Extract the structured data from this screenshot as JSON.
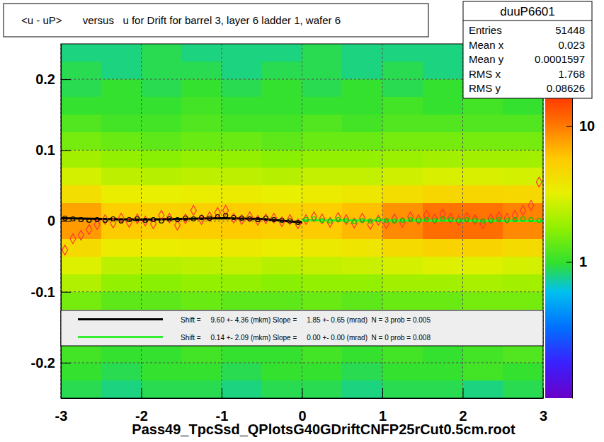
{
  "chart_data": {
    "type": "heatmap",
    "title": "<u - uP>       versus   u for Drift for barrel 3, layer 6 ladder 1, wafer 6",
    "x_label": "Pass49_TpcSsd_QPlotsG40GDriftCNFP25rCut0.5cm.root",
    "xlim": [
      -3,
      3
    ],
    "xticks": [
      -3,
      -2,
      -1,
      0,
      1,
      2,
      3
    ],
    "ylim": [
      -0.25,
      0.25
    ],
    "yticks": [
      -0.2,
      -0.1,
      0,
      0.1,
      0.2
    ],
    "grid": true,
    "legend": "bottom",
    "x_bins": [
      -3,
      -2.5,
      -2,
      -1.5,
      -1,
      -0.5,
      0,
      0.5,
      1,
      1.5,
      2,
      2.5,
      3
    ],
    "y_bins": [
      -0.25,
      -0.225,
      -0.2,
      -0.175,
      -0.15,
      -0.125,
      -0.1,
      -0.075,
      -0.05,
      -0.025,
      0,
      0.025,
      0.05,
      0.075,
      0.1,
      0.125,
      0.15,
      0.175,
      0.2,
      0.225,
      0.25
    ],
    "cells": [
      [
        0.9,
        0.8,
        0.9,
        0.9,
        0.8,
        0.9,
        0.9,
        0.8,
        0.9,
        0.9,
        0.8,
        0.9
      ],
      [
        1.0,
        0.9,
        1.0,
        1.0,
        0.9,
        1.0,
        1.0,
        0.9,
        1.0,
        1.0,
        1.1,
        1.0
      ],
      [
        1.1,
        1.0,
        1.0,
        1.1,
        1.0,
        1.0,
        1.1,
        1.0,
        1.1,
        1.0,
        1.1,
        1.2
      ],
      [
        null,
        null,
        null,
        null,
        null,
        null,
        null,
        null,
        null,
        null,
        null,
        null
      ],
      [
        null,
        null,
        null,
        null,
        null,
        null,
        null,
        null,
        null,
        null,
        null,
        null
      ],
      [
        1.5,
        1.3,
        1.3,
        1.4,
        1.3,
        1.3,
        1.4,
        1.3,
        1.4,
        1.4,
        1.5,
        1.5
      ],
      [
        2.2,
        1.8,
        1.7,
        1.8,
        1.8,
        1.7,
        1.8,
        1.8,
        2.0,
        2.0,
        2.1,
        2.0
      ],
      [
        3.0,
        2.4,
        2.3,
        2.4,
        2.5,
        2.3,
        2.5,
        2.6,
        2.8,
        3.0,
        3.0,
        2.8
      ],
      [
        4.5,
        3.5,
        3.4,
        3.5,
        3.6,
        3.4,
        3.6,
        3.8,
        4.5,
        5.0,
        5.0,
        4.5
      ],
      [
        8.0,
        5.5,
        5.2,
        5.4,
        5.6,
        5.2,
        5.5,
        6.5,
        9.0,
        11.0,
        11.0,
        9.0
      ],
      [
        7.5,
        5.3,
        5.0,
        5.2,
        5.4,
        5.0,
        5.3,
        6.2,
        8.5,
        10.5,
        10.5,
        9.5
      ],
      [
        4.2,
        3.4,
        3.3,
        3.4,
        3.5,
        3.3,
        3.5,
        3.7,
        4.3,
        4.8,
        4.8,
        4.6
      ],
      [
        2.8,
        2.4,
        2.3,
        2.4,
        2.4,
        2.3,
        2.5,
        2.5,
        2.7,
        2.9,
        2.9,
        2.8
      ],
      [
        2.0,
        1.8,
        1.7,
        1.8,
        1.8,
        1.7,
        1.8,
        1.8,
        1.9,
        2.0,
        2.0,
        2.0
      ],
      [
        1.5,
        1.4,
        1.3,
        1.4,
        1.4,
        1.3,
        1.4,
        1.4,
        1.5,
        1.5,
        1.5,
        1.5
      ],
      [
        1.2,
        1.1,
        1.1,
        1.2,
        1.1,
        1.1,
        1.2,
        1.1,
        1.2,
        1.2,
        1.2,
        1.2
      ],
      [
        1.0,
        1.0,
        1.0,
        1.1,
        1.0,
        1.0,
        1.0,
        1.0,
        1.1,
        1.0,
        1.1,
        1.0
      ],
      [
        0.9,
        1.0,
        0.9,
        1.0,
        0.9,
        1.0,
        0.9,
        1.0,
        0.9,
        1.0,
        null,
        null
      ],
      [
        0.9,
        0.8,
        0.9,
        0.9,
        0.8,
        0.9,
        0.9,
        0.8,
        0.9,
        0.8,
        null,
        null
      ],
      [
        0.8,
        0.8,
        0.9,
        0.8,
        0.8,
        0.8,
        0.9,
        0.8,
        0.8,
        0.8,
        null,
        null
      ]
    ],
    "colorbar": {
      "range": [
        0.1,
        40
      ],
      "ticks": [
        1,
        10
      ],
      "log": true
    },
    "series": [
      {
        "name": "Shift =     9.60 +- 4.36 (mkm) Slope =     1.85 +- 0.65 (mrad)  N = 3 prob = 0.005",
        "type": "line",
        "color": "#000000",
        "line_style": "solid",
        "x": [
          -3,
          -2,
          -1,
          -0.5,
          0
        ],
        "values": [
          0.004,
          0.002,
          0.004,
          0.003,
          -0.002
        ]
      },
      {
        "name": "Shift =     0.14 +- 2.09 (mkm) Slope =     0.00 +- 0.00 (mrad)  N = 0 prob = 0.008",
        "type": "line",
        "color": "#33ee33",
        "line_style": "solid",
        "x": [
          0,
          3
        ],
        "values": [
          0.001,
          0
        ]
      },
      {
        "type": "scatter",
        "color": "#ff3333",
        "marker": "diamond",
        "x": [
          -2.95,
          -2.85,
          -2.75,
          -2.65,
          -2.55,
          -2.45,
          -2.35,
          -2.25,
          -2.15,
          -2.05,
          -1.95,
          -1.85,
          -1.75,
          -1.65,
          -1.55,
          -1.45,
          -1.35,
          -1.25,
          -1.15,
          -1.05,
          -0.95,
          -0.85,
          -0.75,
          -0.65,
          -0.55,
          -0.45,
          -0.35,
          -0.25,
          -0.15,
          -0.05,
          0.05,
          0.15,
          0.25,
          0.35,
          0.45,
          0.55,
          0.65,
          0.75,
          0.85,
          0.95,
          1.05,
          1.15,
          1.25,
          1.35,
          1.45,
          1.55,
          1.65,
          1.75,
          1.85,
          1.95,
          2.05,
          2.15,
          2.25,
          2.35,
          2.45,
          2.55,
          2.65,
          2.75,
          2.85,
          2.95
        ],
        "values": [
          -0.041,
          -0.025,
          -0.02,
          -0.012,
          -0.005,
          0.002,
          -0.003,
          0.004,
          -0.002,
          0.003,
          0.0,
          -0.004,
          0.008,
          0.004,
          -0.006,
          0.003,
          0.015,
          0.002,
          0.006,
          0.012,
          0.015,
          0.004,
          0.002,
          0.006,
          0.001,
          0.003,
          0.004,
          -0.001,
          0.002,
          -0.004,
          0.002,
          0.006,
          0.003,
          -0.002,
          0.005,
          0.002,
          -0.003,
          0.004,
          -0.005,
          0.001,
          -0.004,
          0.003,
          -0.002,
          0.006,
          0.002,
          0.008,
          0.003,
          0.01,
          0.004,
          0.001,
          0.005,
          0.002,
          -0.004,
          0.003,
          0.006,
          0.004,
          0.008,
          0.015,
          0.022,
          0.055
        ]
      },
      {
        "type": "scatter",
        "color": "#000000",
        "marker": "circle",
        "x": [
          -2.95,
          -2.85,
          -2.75,
          -2.65,
          -2.55,
          -2.45,
          -2.35,
          -2.25,
          -2.15,
          -2.05,
          -1.95,
          -1.85,
          -1.75,
          -1.65,
          -1.55,
          -1.45,
          -1.35,
          -1.25,
          -1.15,
          -1.05,
          -0.95,
          -0.85,
          -0.75,
          -0.65,
          -0.55,
          -0.45,
          -0.35,
          -0.25,
          -0.15,
          -0.05
        ],
        "values": [
          0.004,
          0.003,
          0.002,
          0.001,
          0.002,
          0.001,
          0.003,
          0.0,
          0.002,
          0.003,
          0.001,
          0.002,
          0.0,
          0.003,
          0.002,
          0.004,
          0.003,
          0.005,
          0.004,
          0.006,
          0.008,
          0.005,
          0.004,
          0.003,
          0.002,
          0.004,
          0.002,
          0.001,
          0.0,
          -0.002
        ]
      },
      {
        "type": "scatter",
        "color": "#00cc00",
        "marker": "circle",
        "x": [
          0.05,
          0.15,
          0.25,
          0.35,
          0.45,
          0.55,
          0.65,
          0.75,
          0.85,
          0.95,
          1.05,
          1.15,
          1.25,
          1.35,
          1.45,
          1.55,
          1.65,
          1.75,
          1.85,
          1.95,
          2.05,
          2.15,
          2.25,
          2.35,
          2.45,
          2.55,
          2.65,
          2.75,
          2.85,
          2.95
        ],
        "values": [
          0.002,
          0.003,
          0.001,
          0.0,
          0.002,
          0.001,
          -0.001,
          0.001,
          0.0,
          0.002,
          0.001,
          0.0,
          0.001,
          0.002,
          0.001,
          0.002,
          0.001,
          0.003,
          0.002,
          0.001,
          0.002,
          0.001,
          0.0,
          0.001,
          0.002,
          0.001,
          0.002,
          0.003,
          0.002,
          0.001
        ]
      }
    ],
    "stats": {
      "title": "duuP6601",
      "rows": [
        {
          "label": "Entries",
          "value": "51448"
        },
        {
          "label": "Mean x",
          "value": "0.023"
        },
        {
          "label": "Mean y",
          "value": "0.0001597"
        },
        {
          "label": "RMS x",
          "value": "1.768"
        },
        {
          "label": "RMS y",
          "value": "0.08626"
        }
      ]
    }
  }
}
